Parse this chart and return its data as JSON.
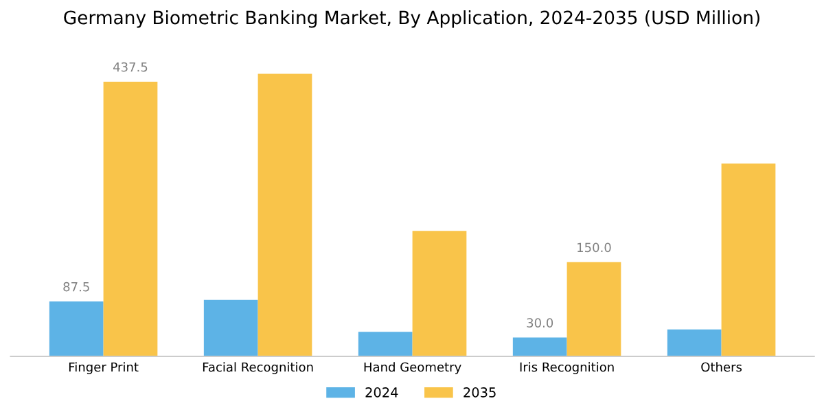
{
  "chart_data": {
    "type": "bar",
    "title": "Germany Biometric Banking Market, By Application, 2024-2035 (USD Million)",
    "categories": [
      "Finger Print",
      "Facial Recognition",
      "Hand Geometry",
      "Iris Recognition",
      "Others"
    ],
    "series": [
      {
        "name": "2024",
        "color": "#5db3e6",
        "values": [
          87.5,
          90,
          39,
          30.0,
          43
        ],
        "value_labels": [
          "87.5",
          null,
          null,
          "30.0",
          null
        ]
      },
      {
        "name": "2035",
        "color": "#f9c44a",
        "values": [
          437.5,
          450,
          200,
          150.0,
          307
        ],
        "value_labels": [
          "437.5",
          null,
          null,
          "150.0",
          null
        ]
      }
    ],
    "grid": false,
    "legend": "bottom"
  }
}
